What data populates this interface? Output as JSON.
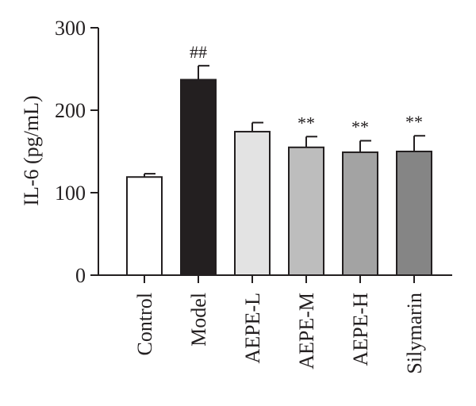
{
  "chart_data": {
    "type": "bar",
    "title": "",
    "xlabel": "",
    "ylabel": "IL-6 (pg/mL)",
    "ylim": [
      0,
      300
    ],
    "yticks": [
      0,
      100,
      200,
      300
    ],
    "grid": false,
    "categories": [
      "Control",
      "Model",
      "AEPE-L",
      "AEPE-M",
      "AEPE-H",
      "Silymarin"
    ],
    "values": [
      119,
      237,
      174,
      155,
      149,
      150
    ],
    "errors": [
      4,
      17,
      11,
      13,
      14,
      19
    ],
    "bar_colors": [
      "#ffffff",
      "#231f20",
      "#e3e3e3",
      "#bdbdbd",
      "#a3a3a3",
      "#858585"
    ],
    "annotations": [
      "",
      "##",
      "",
      "**",
      "**",
      "**"
    ]
  }
}
